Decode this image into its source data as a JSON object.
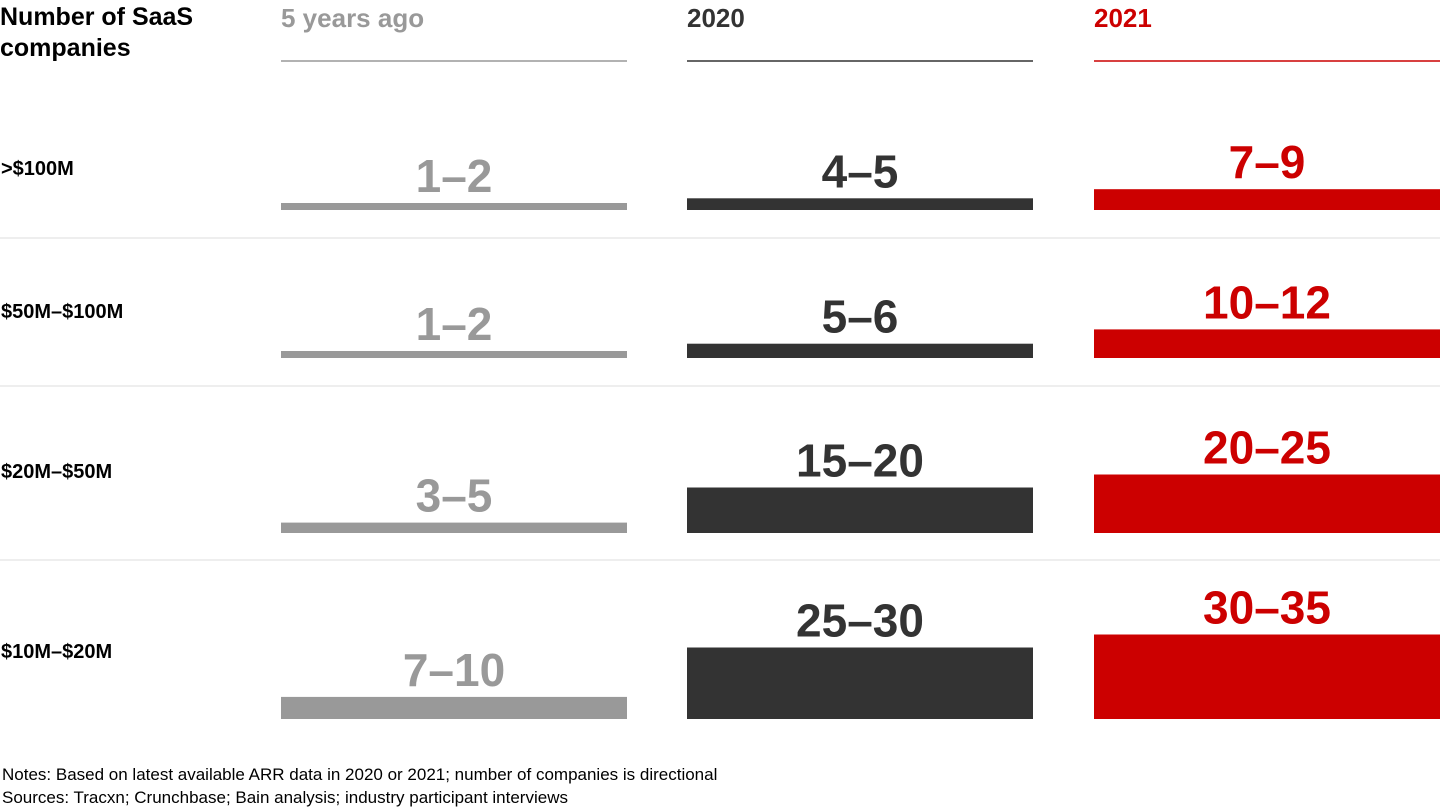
{
  "chart_data": {
    "type": "bar",
    "title": "",
    "row_axis_title": "Number of SaaS companies",
    "categories": [
      ">$100M",
      "$50M–$100M",
      "$20M–$50M",
      "$10M–$20M"
    ],
    "series": [
      {
        "name": "5 years ago",
        "color": "#999999",
        "labels": [
          "1–2",
          "1–2",
          "3–5",
          "7–10"
        ],
        "values": [
          1.5,
          1.5,
          4,
          8.5
        ]
      },
      {
        "name": "2020",
        "color": "#333333",
        "labels": [
          "4–5",
          "5–6",
          "15–20",
          "25–30"
        ],
        "values": [
          4.5,
          5.5,
          17.5,
          27.5
        ]
      },
      {
        "name": "2021",
        "color": "#cc0000",
        "labels": [
          "7–9",
          "10–12",
          "20–25",
          "30–35"
        ],
        "values": [
          8,
          11,
          22.5,
          32.5
        ]
      }
    ],
    "legend": "none",
    "grid": false
  },
  "notes": [
    "Notes: Based on latest available ARR data in 2020 or 2021; number of companies is directional",
    "Sources: Tracxn; Crunchbase; Bain analysis; industry participant interviews"
  ]
}
